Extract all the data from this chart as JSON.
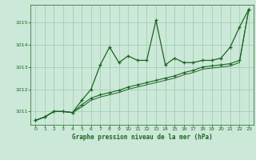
{
  "title": "Graphe pression niveau de la mer (hPa)",
  "background_color": "#cce8d8",
  "plot_bg_color": "#cce8d8",
  "grid_color": "#99ccb0",
  "line_color": "#1a6620",
  "x_ticks": [
    0,
    1,
    2,
    3,
    4,
    5,
    6,
    7,
    8,
    9,
    10,
    11,
    12,
    13,
    14,
    15,
    16,
    17,
    18,
    19,
    20,
    21,
    22,
    23
  ],
  "ylim": [
    1010.4,
    1015.8
  ],
  "yticks": [
    1011,
    1012,
    1013,
    1014,
    1015
  ],
  "series1": [
    1010.6,
    1010.75,
    1011.0,
    1011.0,
    1010.95,
    1011.5,
    1012.0,
    1013.1,
    1013.9,
    1013.2,
    1013.5,
    1013.3,
    1013.3,
    1015.1,
    1013.1,
    1013.4,
    1013.2,
    1013.2,
    1013.3,
    1013.3,
    1013.4,
    1013.9,
    1014.8,
    1015.6
  ],
  "series2": [
    1010.6,
    1010.75,
    1011.0,
    1011.0,
    1010.95,
    1011.3,
    1011.6,
    1011.75,
    1011.85,
    1011.95,
    1012.1,
    1012.2,
    1012.3,
    1012.4,
    1012.5,
    1012.6,
    1012.75,
    1012.85,
    1013.0,
    1013.05,
    1013.1,
    1013.15,
    1013.3,
    1015.6
  ],
  "series3": [
    1010.6,
    1010.75,
    1011.0,
    1011.0,
    1010.95,
    1011.2,
    1011.5,
    1011.65,
    1011.75,
    1011.85,
    1012.0,
    1012.1,
    1012.2,
    1012.3,
    1012.4,
    1012.5,
    1012.65,
    1012.75,
    1012.9,
    1012.95,
    1013.0,
    1013.05,
    1013.2,
    1015.6
  ]
}
